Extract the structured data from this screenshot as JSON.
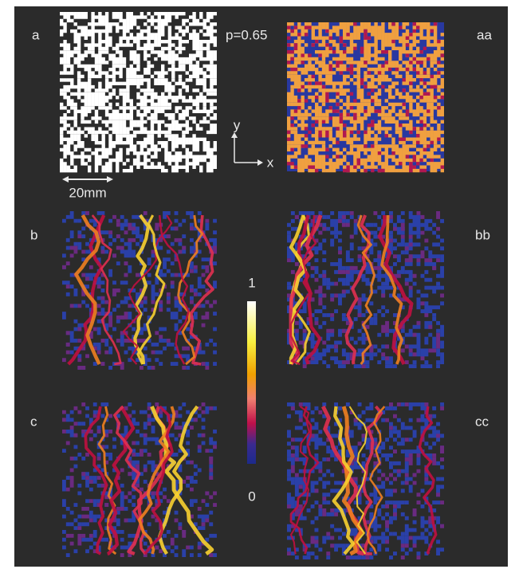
{
  "panels": [
    {
      "label": "a",
      "note": "p=0.65"
    },
    {
      "label": "aa"
    },
    {
      "label": "b"
    },
    {
      "label": "bb"
    },
    {
      "label": "c"
    },
    {
      "label": "cc"
    }
  ],
  "scale_bar": "20mm",
  "axes": {
    "y": "y",
    "x": "x"
  },
  "colorbar": {
    "max": 1,
    "min": 0
  }
}
